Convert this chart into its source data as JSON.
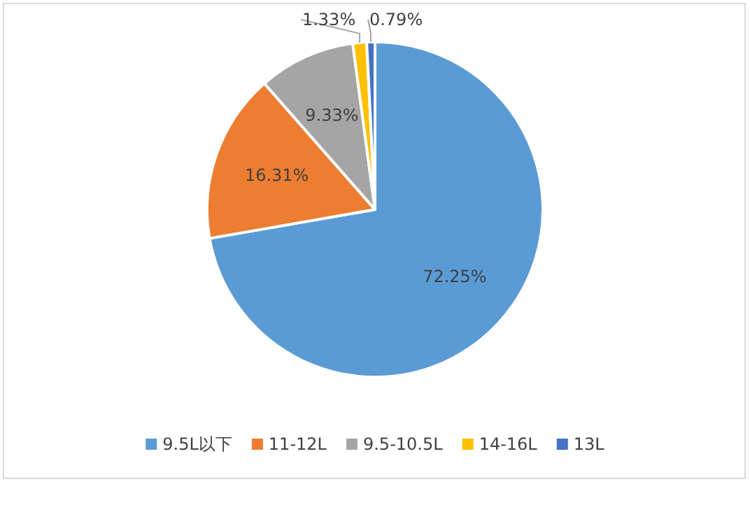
{
  "chart_data": {
    "type": "pie",
    "categories": [
      "9.5L以下",
      "11-12L",
      "9.5-10.5L",
      "14-16L",
      "13L"
    ],
    "values": [
      72.25,
      16.31,
      9.33,
      1.33,
      0.79
    ],
    "colors": [
      "#5b9bd5",
      "#ed7d31",
      "#a5a5a5",
      "#ffc000",
      "#4472c4"
    ],
    "value_labels": [
      "72.25%",
      "16.31%",
      "9.33%",
      "1.33%",
      "0.79%"
    ],
    "legend": "bottom"
  }
}
